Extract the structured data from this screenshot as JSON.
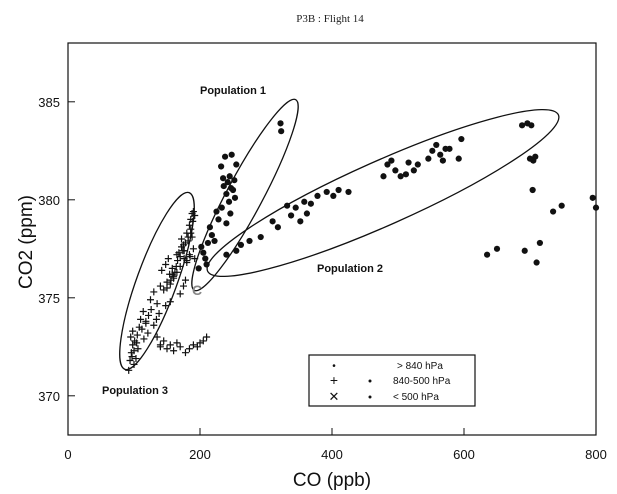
{
  "chart_data": {
    "type": "scatter",
    "title": "P3B : Flight 14",
    "xlabel": "CO (ppb)",
    "ylabel": "CO2 (ppm)",
    "xlim": [
      0,
      800
    ],
    "ylim": [
      368,
      388
    ],
    "x_ticks": [
      "0",
      "200",
      "400",
      "600",
      "800"
    ],
    "y_ticks": [
      "370",
      "375",
      "380",
      "385"
    ],
    "grid": false,
    "legend_placement": "bottom-right",
    "legend": [
      {
        "symbol": "•",
        "range": "> 840 hPa"
      },
      {
        "symbol": "+",
        "range": "840-500 hPa"
      },
      {
        "symbol": "✕",
        "range": "< 500 hPa"
      }
    ],
    "annotations": {
      "population_1": "Population 1",
      "population_2": "Population 2",
      "population_3": "Population 3",
      "point_c": "C"
    },
    "series": [
      {
        "marker": "dot",
        "x": [
          322,
          323,
          232,
          238,
          242,
          245,
          250,
          248,
          236,
          240,
          244,
          252,
          255,
          235,
          247,
          253,
          225,
          228,
          233,
          240,
          246,
          215,
          218,
          222,
          212,
          205,
          208,
          210,
          198,
          202,
          240,
          255,
          262,
          275,
          292,
          310,
          318,
          332,
          338,
          345,
          352,
          358,
          362,
          368,
          378,
          392,
          402,
          410,
          425,
          478,
          484,
          490,
          496,
          504,
          512,
          516,
          524,
          530,
          546,
          552,
          558,
          564,
          568,
          572,
          578,
          592,
          596,
          688,
          696,
          702,
          705,
          708,
          700,
          704,
          710,
          635,
          650,
          692,
          715,
          735,
          748,
          795,
          800
        ],
        "y": [
          383.9,
          383.5,
          381.7,
          382.2,
          380.9,
          381.2,
          380.5,
          382.3,
          380.7,
          380.3,
          379.9,
          381.0,
          381.8,
          381.1,
          380.6,
          380.1,
          379.4,
          379.0,
          379.6,
          378.8,
          379.3,
          378.6,
          378.2,
          377.9,
          377.8,
          377.3,
          377.0,
          376.7,
          376.5,
          377.6,
          377.2,
          377.4,
          377.7,
          377.9,
          378.1,
          378.9,
          378.6,
          379.7,
          379.2,
          379.6,
          378.9,
          379.9,
          379.3,
          379.8,
          380.2,
          380.4,
          380.2,
          380.5,
          380.4,
          381.2,
          381.8,
          382.0,
          381.5,
          381.2,
          381.3,
          381.9,
          381.5,
          381.8,
          382.1,
          382.5,
          382.8,
          382.3,
          382.0,
          382.6,
          382.6,
          382.1,
          383.1,
          383.8,
          383.9,
          383.8,
          382.0,
          382.2,
          382.1,
          380.5,
          376.8,
          377.2,
          377.5,
          377.4,
          377.8,
          379.4,
          379.7,
          380.1,
          379.6
        ],
        "name": ""
      },
      {
        "marker": "plus",
        "x": [
          92,
          94,
          96,
          98,
          100,
          103,
          106,
          95,
          98,
          101,
          105,
          108,
          112,
          115,
          118,
          121,
          97,
          100,
          104,
          110,
          114,
          118,
          122,
          126,
          130,
          134,
          138,
          125,
          130,
          135,
          140,
          145,
          150,
          154,
          158,
          162,
          166,
          170,
          174,
          178,
          182,
          186,
          142,
          148,
          152,
          156,
          160,
          164,
          168,
          172,
          176,
          180,
          184,
          150,
          155,
          160,
          165,
          170,
          175,
          180,
          184,
          186,
          188,
          176,
          182,
          186,
          189,
          192,
          180,
          185,
          190,
          170,
          175,
          178,
          190,
          192,
          188,
          158,
          165,
          172,
          140,
          145,
          150,
          155,
          160,
          165,
          170,
          178,
          184,
          190,
          196,
          200,
          205,
          210,
          135,
          140,
          148,
          155
        ],
        "y": [
          371.3,
          371.8,
          372.2,
          372.6,
          371.6,
          371.9,
          372.4,
          373.0,
          373.3,
          372.8,
          373.1,
          373.5,
          373.4,
          372.9,
          373.7,
          373.2,
          372.0,
          372.3,
          372.7,
          373.9,
          374.3,
          373.8,
          374.1,
          374.4,
          373.6,
          373.9,
          374.2,
          374.9,
          375.3,
          374.7,
          375.6,
          375.4,
          375.8,
          376.2,
          376.5,
          376.3,
          376.9,
          377.1,
          377.4,
          377.8,
          378.1,
          378.5,
          376.4,
          376.7,
          377.0,
          375.9,
          376.1,
          376.6,
          377.3,
          377.6,
          377.0,
          376.8,
          377.2,
          375.5,
          375.7,
          376.0,
          376.3,
          376.6,
          377.7,
          378.3,
          378.7,
          379.0,
          379.3,
          377.4,
          377.9,
          378.3,
          378.9,
          379.2,
          376.9,
          377.1,
          377.5,
          375.2,
          375.6,
          375.9,
          379.4,
          377.0,
          378.1,
          376.2,
          377.2,
          378.0,
          372.5,
          372.8,
          372.4,
          372.6,
          372.3,
          372.7,
          372.5,
          372.2,
          372.4,
          372.6,
          372.5,
          372.7,
          372.8,
          373.0,
          373.0,
          372.6,
          374.6,
          374.8
        ],
        "name": ""
      }
    ]
  }
}
